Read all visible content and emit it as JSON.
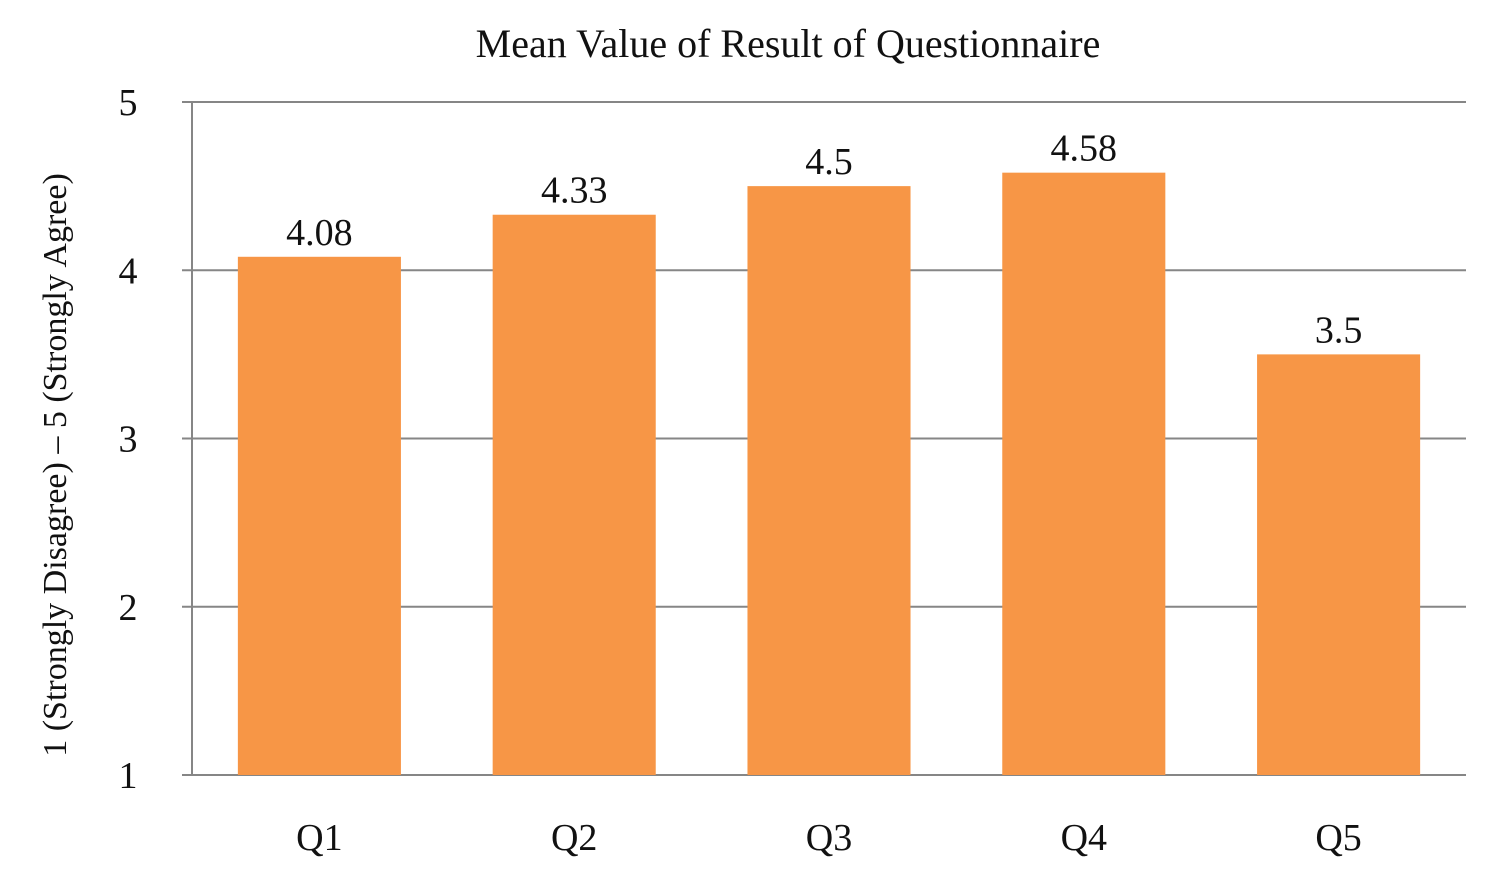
{
  "chart_data": {
    "type": "bar",
    "title": "Mean Value of Result of  Questionnaire",
    "xlabel": "",
    "ylabel": "1  (Strongly Disagree) – 5 (Strongly Agree)",
    "categories": [
      "Q1",
      "Q2",
      "Q3",
      "Q4",
      "Q5"
    ],
    "values": [
      4.08,
      4.33,
      4.5,
      4.58,
      3.5
    ],
    "data_labels": [
      "4.08",
      "4.33",
      "4.5",
      "4.58",
      "3.5"
    ],
    "ylim": [
      1,
      5
    ],
    "yticks": [
      1,
      2,
      3,
      4,
      5
    ],
    "grid": true,
    "legend": "none",
    "bar_color": "#f79646",
    "grid_color": "#868686"
  }
}
